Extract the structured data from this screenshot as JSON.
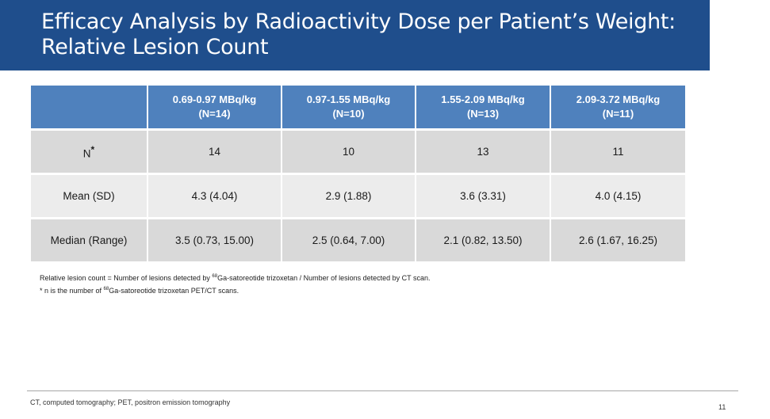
{
  "title": {
    "line1": "Efficacy Analysis by Radioactivity Dose per Patient’s Weight:",
    "line2": "Relative Lesion Count"
  },
  "table": {
    "columns": [
      {
        "dose": "0.69-0.97 MBq/kg",
        "n": "(N=14)"
      },
      {
        "dose": "0.97-1.55 MBq/kg",
        "n": "(N=10)"
      },
      {
        "dose": "1.55-2.09 MBq/kg",
        "n": "(N=13)"
      },
      {
        "dose": "2.09-3.72 MBq/kg",
        "n": "(N=11)"
      }
    ],
    "rows": [
      {
        "label": "N",
        "label_sup": "*",
        "values": [
          "14",
          "10",
          "13",
          "11"
        ]
      },
      {
        "label": "Mean (SD)",
        "values": [
          "4.3 (4.04)",
          "2.9 (1.88)",
          "3.6 (3.31)",
          "4.0 (4.15)"
        ]
      },
      {
        "label": "Median (Range)",
        "values": [
          "3.5 (0.73, 15.00)",
          "2.5 (0.64, 7.00)",
          "2.1 (0.82, 13.50)",
          "2.6 (1.67, 16.25)"
        ]
      }
    ]
  },
  "footnotes": {
    "line1_a": "Relative lesion count = Number of lesions detected by ",
    "line1_sup": "68",
    "line1_b": "Ga-satoreotide trizoxetan  / Number of lesions detected by CT scan.",
    "line2_a": "* n is the number of ",
    "line2_sup": "68",
    "line2_b": "Ga-satoreotide trizoxetan PET/CT scans."
  },
  "abbreviations": "CT, computed tomography; PET, positron emission tomography",
  "page_number": "11",
  "colors": {
    "title_bar": "#1f4e8c",
    "header": "#4f81bd",
    "row_dark": "#d9d9d9",
    "row_light": "#ececec"
  }
}
